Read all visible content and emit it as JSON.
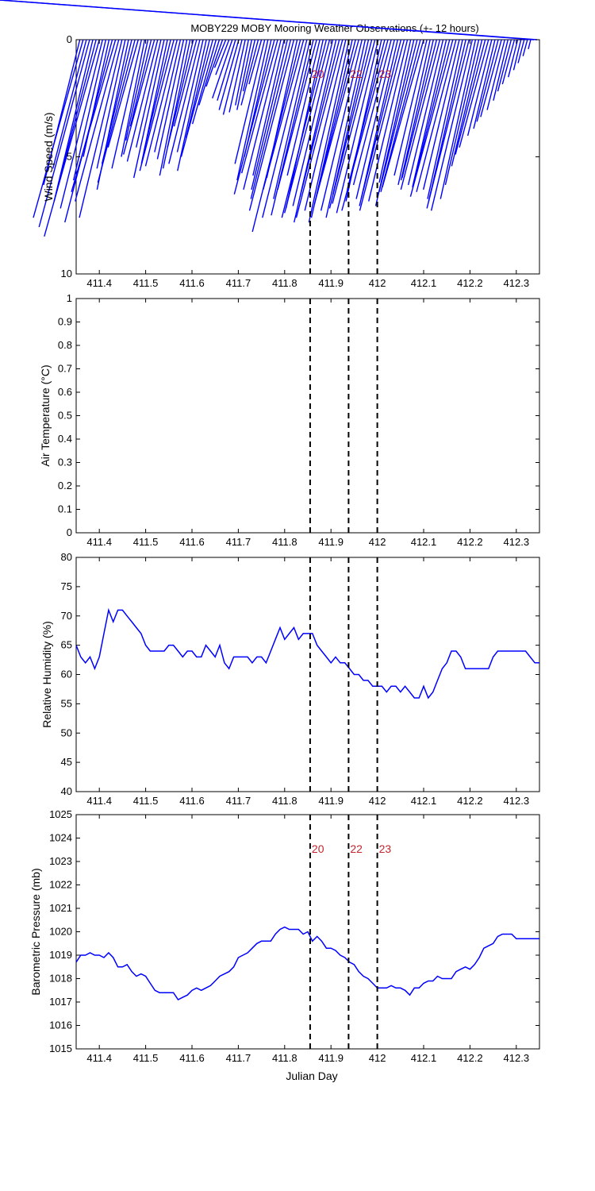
{
  "title": "MOBY229 MOBY Mooring Weather Observations (+- 12 hours)",
  "colors": {
    "series": "#0000ff",
    "marker_text": "#c0272d",
    "axes": "#000000"
  },
  "chart_data": [
    {
      "type": "line",
      "subtype": "wind-vector-stick",
      "ylabel": "Wind Speed (m/s)",
      "xlabel": "",
      "xlim": [
        411.35,
        412.35
      ],
      "ylim": [
        0,
        10
      ],
      "y_reversed": true,
      "x_ticks": [
        "411.4",
        "411.5",
        "411.6",
        "411.7",
        "411.8",
        "411.9",
        "412",
        "412.1",
        "412.2",
        "412.3"
      ],
      "y_ticks": [
        "0",
        "5",
        "10"
      ],
      "vertical_markers": [
        {
          "x": 411.855,
          "label": "20"
        },
        {
          "x": 411.938,
          "label": "22"
        },
        {
          "x": 412.0,
          "label": "23"
        }
      ],
      "series": [
        {
          "x": [
            411.358,
            411.365,
            411.372,
            411.379,
            411.386,
            411.393,
            411.4,
            411.407,
            411.414,
            411.421,
            411.428,
            411.435,
            411.442,
            411.449,
            411.456,
            411.463,
            411.47,
            411.477,
            411.484,
            411.491,
            411.498,
            411.505,
            411.512,
            411.519,
            411.526,
            411.533,
            411.54,
            411.547,
            411.554,
            411.561,
            411.568,
            411.575,
            411.582,
            411.589,
            411.596,
            411.603,
            411.61,
            411.617,
            411.624,
            411.631,
            411.638,
            411.645,
            411.652,
            411.659,
            411.666,
            411.673,
            411.68,
            411.687,
            411.694,
            411.701,
            411.708,
            411.715,
            411.722,
            411.729,
            411.736,
            411.743,
            411.75,
            411.757,
            411.764,
            411.771,
            411.778,
            411.785,
            411.792,
            411.799,
            411.806,
            411.813,
            411.82,
            411.827,
            411.834,
            411.841,
            411.848,
            411.855,
            411.862,
            411.869,
            411.876,
            411.883,
            411.89,
            411.897,
            411.904,
            411.911,
            411.918,
            411.925,
            411.932,
            411.939,
            411.946,
            411.953,
            411.96,
            411.967,
            411.974,
            411.981,
            411.988,
            411.995,
            412.002,
            412.009,
            412.016,
            412.023,
            412.03,
            412.037,
            412.044,
            412.051,
            412.058,
            412.065,
            412.072,
            412.079,
            412.086,
            412.093,
            412.1,
            412.107,
            412.114,
            412.121,
            412.128,
            412.135,
            412.142,
            412.149,
            412.156,
            412.163,
            412.17,
            412.177,
            412.184,
            412.191,
            412.198,
            412.205,
            412.212,
            412.219,
            412.226,
            412.233,
            412.24,
            412.247,
            412.254,
            412.261,
            412.268,
            412.275,
            412.282,
            412.289,
            412.296,
            412.303,
            412.31,
            412.317,
            412.324,
            412.331,
            412.338,
            412.345
          ],
          "speed": [
            6.2,
            7.6,
            5.5,
            8.0,
            6.9,
            5.8,
            8.4,
            7.2,
            6.0,
            5.0,
            7.8,
            6.5,
            6.9,
            7.6,
            5.5,
            6.4,
            5.3,
            6.1,
            4.6,
            5.5,
            5.0,
            4.3,
            3.7,
            4.9,
            5.2,
            4.6,
            5.9,
            5.3,
            4.7,
            5.6,
            5.4,
            4.8,
            5.1,
            5.8,
            5.5,
            4.6,
            3.7,
            5.3,
            4.8,
            5.6,
            4.2,
            5.0,
            3.6,
            2.8,
            2.0,
            1.2,
            1.5,
            2.5,
            2.6,
            3.0,
            3.2,
            3.1,
            2.8,
            3.0,
            2.2,
            2.8,
            1.9,
            5.3,
            6.0,
            5.0,
            6.6,
            5.7,
            6.4,
            5.8,
            6.4,
            6.8,
            7.3,
            5.9,
            8.2,
            6.4,
            7.6,
            6.8,
            7.5,
            6.4,
            5.8,
            7.2,
            7.6,
            7.4,
            7.1,
            7.8,
            6.7,
            7.6,
            7.3,
            7.8,
            7.6,
            6.6,
            7.0,
            7.3,
            7.6,
            6.6,
            7.2,
            7.0,
            7.4,
            6.9,
            6.4,
            7.3,
            6.2,
            6.8,
            7.1,
            6.8,
            7.3,
            6.9,
            6.1,
            7.1,
            6.5,
            6.5,
            6.3,
            5.8,
            6.2,
            6.0,
            5.9,
            6.4,
            6.2,
            6.3,
            6.0,
            6.7,
            6.5,
            6.4,
            6.8,
            6.9,
            7.2,
            7.3,
            6.8,
            6.2,
            5.4,
            4.9,
            4.6,
            4.1,
            3.8,
            3.5,
            3.3,
            3.0,
            2.6,
            2.2,
            1.9,
            1.6,
            1.3,
            1.0,
            0.7,
            0.4
          ],
          "direction_x": [
            0.25,
            0.28,
            0.26,
            0.27,
            0.24,
            0.26,
            0.28,
            0.25,
            0.23,
            0.22,
            0.26,
            0.29,
            0.27,
            0.24,
            0.22,
            0.21,
            0.24,
            0.26,
            0.28,
            0.23,
            0.2,
            0.22,
            0.24,
            0.27,
            0.25,
            0.23,
            0.22,
            0.21,
            0.24,
            0.26,
            0.25,
            0.23,
            0.22,
            0.2,
            0.21,
            0.24,
            0.26,
            0.25,
            0.23,
            0.22,
            0.24,
            0.27,
            0.28,
            0.31,
            0.35,
            0.4,
            0.38,
            0.34,
            0.3,
            0.28,
            0.25,
            0.22,
            0.2,
            0.21,
            0.23,
            0.26,
            0.28,
            0.24,
            0.22,
            0.23,
            0.26,
            0.27,
            0.25,
            0.23,
            0.24,
            0.25,
            0.26,
            0.22,
            0.25,
            0.27,
            0.25,
            0.23,
            0.24,
            0.26,
            0.24,
            0.22,
            0.25,
            0.26,
            0.24,
            0.23,
            0.25,
            0.26,
            0.24,
            0.22,
            0.23,
            0.25,
            0.27,
            0.24,
            0.22,
            0.23,
            0.25,
            0.26,
            0.24,
            0.22,
            0.25,
            0.27,
            0.26,
            0.24,
            0.23,
            0.25,
            0.26,
            0.24,
            0.22,
            0.23,
            0.25,
            0.26,
            0.28,
            0.24,
            0.22,
            0.23,
            0.25,
            0.26,
            0.24,
            0.23,
            0.25,
            0.27,
            0.26,
            0.24,
            0.22,
            0.23,
            0.25,
            0.24,
            0.22,
            0.23,
            0.24,
            0.26,
            0.27,
            0.25,
            0.24,
            0.26,
            0.27,
            0.25,
            0.24,
            0.26,
            0.27,
            0.25,
            0.24,
            0.26,
            0.27,
            0.25
          ]
        }
      ]
    },
    {
      "type": "line",
      "ylabel": "Air Temperature (°C)",
      "xlabel": "",
      "xlim": [
        411.35,
        412.35
      ],
      "ylim": [
        0,
        1
      ],
      "x_ticks": [
        "411.4",
        "411.5",
        "411.6",
        "411.7",
        "411.8",
        "411.9",
        "412",
        "412.1",
        "412.2",
        "412.3"
      ],
      "y_ticks": [
        "0",
        "0.1",
        "0.2",
        "0.3",
        "0.4",
        "0.5",
        "0.6",
        "0.7",
        "0.8",
        "0.9",
        "1"
      ],
      "vertical_markers": [
        {
          "x": 411.855,
          "label": ""
        },
        {
          "x": 411.938,
          "label": ""
        },
        {
          "x": 412.0,
          "label": ""
        }
      ],
      "series": []
    },
    {
      "type": "line",
      "ylabel": "Relative Humidity (%)",
      "xlabel": "",
      "xlim": [
        411.35,
        412.35
      ],
      "ylim": [
        40,
        80
      ],
      "x_ticks": [
        "411.4",
        "411.5",
        "411.6",
        "411.7",
        "411.8",
        "411.9",
        "412",
        "412.1",
        "412.2",
        "412.3"
      ],
      "y_ticks": [
        "40",
        "45",
        "50",
        "55",
        "60",
        "65",
        "70",
        "75",
        "80"
      ],
      "vertical_markers": [
        {
          "x": 411.855,
          "label": ""
        },
        {
          "x": 411.938,
          "label": ""
        },
        {
          "x": 412.0,
          "label": ""
        }
      ],
      "series": [
        {
          "x": [
            411.35,
            411.36,
            411.37,
            411.38,
            411.39,
            411.4,
            411.41,
            411.42,
            411.43,
            411.44,
            411.45,
            411.46,
            411.47,
            411.48,
            411.49,
            411.5,
            411.51,
            411.52,
            411.53,
            411.54,
            411.55,
            411.56,
            411.57,
            411.58,
            411.59,
            411.6,
            411.61,
            411.62,
            411.63,
            411.64,
            411.65,
            411.66,
            411.67,
            411.68,
            411.69,
            411.7,
            411.71,
            411.72,
            411.73,
            411.74,
            411.75,
            411.76,
            411.77,
            411.78,
            411.79,
            411.8,
            411.81,
            411.82,
            411.83,
            411.84,
            411.85,
            411.86,
            411.87,
            411.88,
            411.89,
            411.9,
            411.91,
            411.92,
            411.93,
            411.94,
            411.95,
            411.96,
            411.97,
            411.98,
            411.99,
            412.0,
            412.01,
            412.02,
            412.03,
            412.04,
            412.05,
            412.06,
            412.07,
            412.08,
            412.09,
            412.1,
            412.11,
            412.12,
            412.13,
            412.14,
            412.15,
            412.16,
            412.17,
            412.18,
            412.19,
            412.2,
            412.21,
            412.22,
            412.23,
            412.24,
            412.25,
            412.26,
            412.27,
            412.28,
            412.29,
            412.3,
            412.31,
            412.32,
            412.33,
            412.34,
            412.35
          ],
          "values": [
            65,
            63,
            62,
            63,
            61,
            63,
            67,
            71,
            69,
            71,
            71,
            70,
            69,
            68,
            67,
            65,
            64,
            64,
            64,
            64,
            65,
            65,
            64,
            63,
            64,
            64,
            63,
            63,
            65,
            64,
            63,
            65,
            62,
            61,
            63,
            63,
            63,
            63,
            62,
            63,
            63,
            62,
            64,
            66,
            68,
            66,
            67,
            68,
            66,
            67,
            67,
            67,
            65,
            64,
            63,
            62,
            63,
            62,
            62,
            61,
            60,
            60,
            59,
            59,
            58,
            58,
            58,
            57,
            58,
            58,
            57,
            58,
            57,
            56,
            56,
            58,
            56,
            57,
            59,
            61,
            62,
            64,
            64,
            63,
            61,
            61,
            61,
            61,
            61,
            61,
            63,
            64,
            64,
            64,
            64,
            64,
            64,
            64,
            63,
            62,
            62
          ]
        }
      ]
    },
    {
      "type": "line",
      "ylabel": "Barometric Pressure (mb)",
      "xlabel": "Julian Day",
      "xlim": [
        411.35,
        412.35
      ],
      "ylim": [
        1015,
        1025
      ],
      "x_ticks": [
        "411.4",
        "411.5",
        "411.6",
        "411.7",
        "411.8",
        "411.9",
        "412",
        "412.1",
        "412.2",
        "412.3"
      ],
      "y_ticks": [
        "1015",
        "1016",
        "1017",
        "1018",
        "1019",
        "1020",
        "1021",
        "1022",
        "1023",
        "1024",
        "1025"
      ],
      "vertical_markers": [
        {
          "x": 411.855,
          "label": "20"
        },
        {
          "x": 411.938,
          "label": "22"
        },
        {
          "x": 412.0,
          "label": "23"
        }
      ],
      "series": [
        {
          "x": [
            411.35,
            411.36,
            411.37,
            411.38,
            411.39,
            411.4,
            411.41,
            411.42,
            411.43,
            411.44,
            411.45,
            411.46,
            411.47,
            411.48,
            411.49,
            411.5,
            411.51,
            411.52,
            411.53,
            411.54,
            411.55,
            411.56,
            411.57,
            411.58,
            411.59,
            411.6,
            411.61,
            411.62,
            411.63,
            411.64,
            411.65,
            411.66,
            411.67,
            411.68,
            411.69,
            411.7,
            411.71,
            411.72,
            411.73,
            411.74,
            411.75,
            411.76,
            411.77,
            411.78,
            411.79,
            411.8,
            411.81,
            411.82,
            411.83,
            411.84,
            411.85,
            411.86,
            411.87,
            411.88,
            411.89,
            411.9,
            411.91,
            411.92,
            411.93,
            411.94,
            411.95,
            411.96,
            411.97,
            411.98,
            411.99,
            412.0,
            412.01,
            412.02,
            412.03,
            412.04,
            412.05,
            412.06,
            412.07,
            412.08,
            412.09,
            412.1,
            412.11,
            412.12,
            412.13,
            412.14,
            412.15,
            412.16,
            412.17,
            412.18,
            412.19,
            412.2,
            412.21,
            412.22,
            412.23,
            412.24,
            412.25,
            412.26,
            412.27,
            412.28,
            412.29,
            412.3,
            412.31,
            412.32,
            412.33,
            412.34,
            412.35
          ],
          "values": [
            1018.7,
            1019.0,
            1019.0,
            1019.1,
            1019.0,
            1019.0,
            1018.9,
            1019.1,
            1018.9,
            1018.5,
            1018.5,
            1018.6,
            1018.3,
            1018.1,
            1018.2,
            1018.1,
            1017.8,
            1017.5,
            1017.4,
            1017.4,
            1017.4,
            1017.4,
            1017.1,
            1017.2,
            1017.3,
            1017.5,
            1017.6,
            1017.5,
            1017.6,
            1017.7,
            1017.9,
            1018.1,
            1018.2,
            1018.3,
            1018.5,
            1018.9,
            1019.0,
            1019.1,
            1019.3,
            1019.5,
            1019.6,
            1019.6,
            1019.6,
            1019.9,
            1020.1,
            1020.2,
            1020.1,
            1020.1,
            1020.1,
            1019.9,
            1020.0,
            1019.6,
            1019.8,
            1019.6,
            1019.3,
            1019.3,
            1019.2,
            1019.0,
            1018.9,
            1018.7,
            1018.6,
            1018.3,
            1018.1,
            1018.0,
            1017.8,
            1017.6,
            1017.6,
            1017.6,
            1017.7,
            1017.6,
            1017.6,
            1017.5,
            1017.3,
            1017.6,
            1017.6,
            1017.8,
            1017.9,
            1017.9,
            1018.1,
            1018.0,
            1018.0,
            1018.0,
            1018.3,
            1018.4,
            1018.5,
            1018.4,
            1018.6,
            1018.9,
            1019.3,
            1019.4,
            1019.5,
            1019.8,
            1019.9,
            1019.9,
            1019.9,
            1019.7,
            1019.7,
            1019.7,
            1019.7,
            1019.7,
            1019.7
          ]
        }
      ]
    }
  ]
}
